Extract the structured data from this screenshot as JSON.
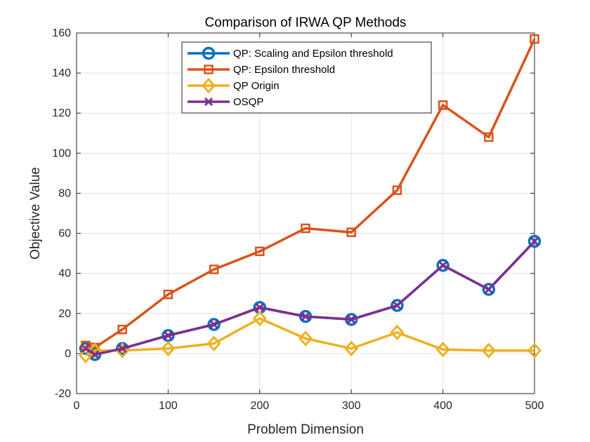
{
  "chart_data": {
    "type": "line",
    "title": "Comparison of IRWA QP Methods",
    "xlabel": "Problem Dimension",
    "ylabel": "Objective Value",
    "xlim": [
      0,
      500
    ],
    "ylim": [
      -20,
      160
    ],
    "xticks": [
      0,
      100,
      200,
      300,
      400,
      500
    ],
    "yticks": [
      -20,
      0,
      20,
      40,
      60,
      80,
      100,
      120,
      140,
      160
    ],
    "grid": true,
    "legend_position": "top-center",
    "x": [
      10,
      20,
      50,
      100,
      150,
      200,
      250,
      300,
      350,
      400,
      450,
      500
    ],
    "series": [
      {
        "name": "QP: Scaling and Epsilon threshold",
        "color": "#0072BD",
        "marker": "circle",
        "values": [
          2.5,
          -0.5,
          2.5,
          9,
          14.5,
          23,
          18.5,
          17,
          24,
          44,
          32,
          56
        ]
      },
      {
        "name": "QP: Epsilon threshold",
        "color": "#D95319",
        "marker": "square",
        "values": [
          4,
          3,
          12,
          29.5,
          42,
          51,
          62.5,
          60.5,
          81.5,
          124,
          108,
          157
        ]
      },
      {
        "name": "QP Origin",
        "color": "#EDB120",
        "marker": "diamond",
        "values": [
          -1,
          1.5,
          1.5,
          2.5,
          5,
          17.5,
          7.5,
          2.5,
          10.5,
          2,
          1.5,
          1.5
        ]
      },
      {
        "name": "OSQP",
        "color": "#7E2F8E",
        "marker": "x",
        "values": [
          2.5,
          -0.5,
          2.5,
          9,
          14.5,
          23,
          18.5,
          17,
          24,
          44,
          32,
          56
        ]
      }
    ]
  }
}
